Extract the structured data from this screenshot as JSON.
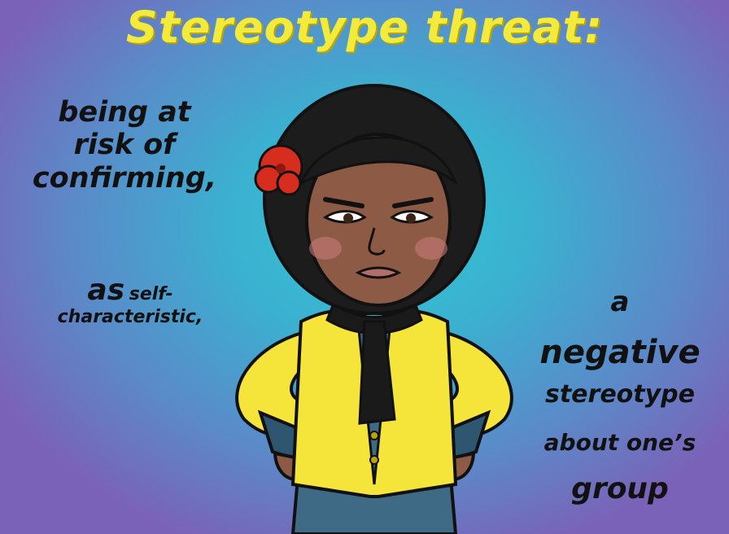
{
  "title": "Stereotype threat:",
  "left_text": {
    "line1": "being at",
    "line2": "risk of",
    "line3": "confirming,",
    "as_word": "as",
    "self_word": "self-",
    "line5": "characteristic,"
  },
  "right_text": {
    "line1": "a",
    "line2": "negative",
    "line3": "stereotype",
    "line4": "about one’s",
    "line5": "group"
  },
  "colors": {
    "title": "#f2ea3c",
    "jacket": "#f5e43a",
    "scarf": "#1a1a1a",
    "flower": "#d62d1f",
    "skin": "#8c5a45"
  }
}
